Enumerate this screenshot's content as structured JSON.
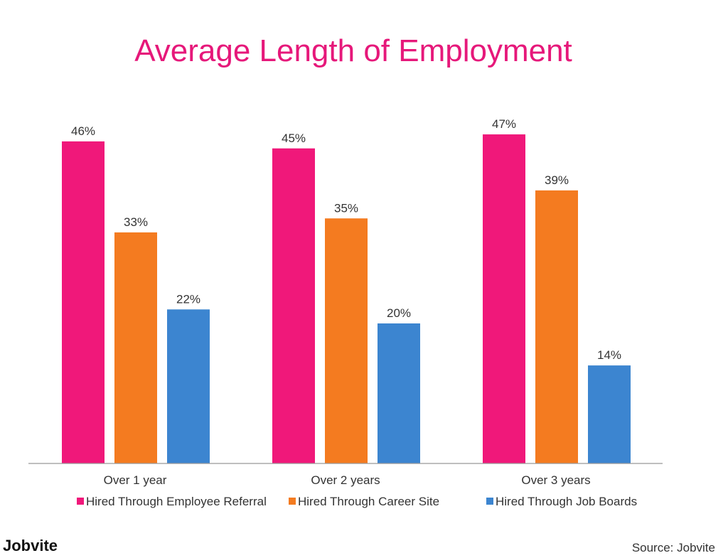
{
  "brand": "Jobvite",
  "source": "Source: Jobvite",
  "chart_data": {
    "type": "bar",
    "title": "Average Length of Employment",
    "xlabel": "",
    "ylabel": "",
    "categories": [
      "Over 1 year",
      "Over 2 years",
      "Over 3 years"
    ],
    "series": [
      {
        "name": "Hired Through Employee Referral",
        "color": "#f0187a",
        "values": [
          46,
          45,
          47
        ],
        "labels": [
          "46%",
          "45%",
          "47%"
        ]
      },
      {
        "name": "Hired Through Career Site",
        "color": "#f47b20",
        "values": [
          33,
          35,
          39
        ],
        "labels": [
          "33%",
          "35%",
          "39%"
        ]
      },
      {
        "name": "Hired Through Job Boards",
        "color": "#3c85d0",
        "values": [
          22,
          20,
          14
        ],
        "labels": [
          "22%",
          "20%",
          "14%"
        ]
      }
    ],
    "ylim": [
      0,
      50
    ],
    "legend": "bottom",
    "grid": false
  }
}
